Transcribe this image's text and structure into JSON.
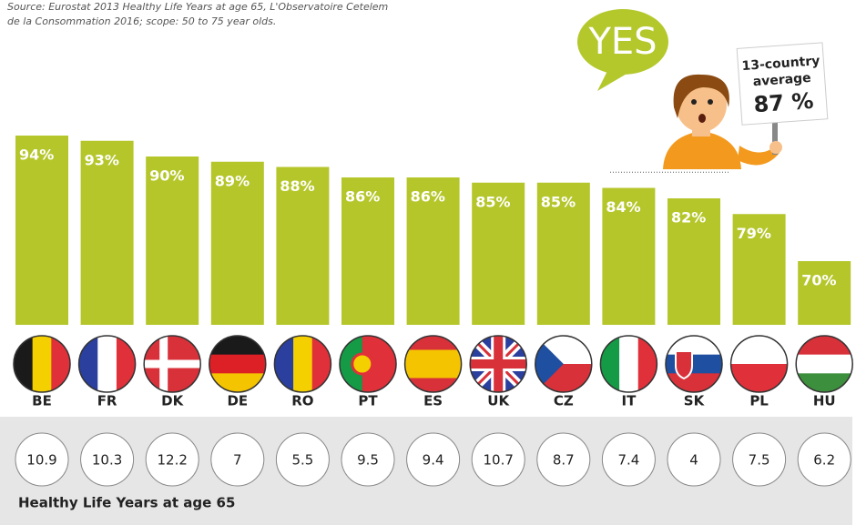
{
  "chart_data": {
    "type": "bar",
    "source": [
      "Source: Eurostat 2013 Healthy Life Years at age 65, L'Observatoire Cetelem",
      "de la Consommation 2016; scope: 50 to 75 year olds."
    ],
    "categories": [
      "BE",
      "FR",
      "DK",
      "DE",
      "RO",
      "PT",
      "ES",
      "UK",
      "CZ",
      "IT",
      "SK",
      "PL",
      "HU"
    ],
    "values": [
      94,
      93,
      90,
      89,
      88,
      86,
      86,
      85,
      85,
      84,
      82,
      79,
      70
    ],
    "value_labels": [
      "94%",
      "93%",
      "90%",
      "89%",
      "88%",
      "86%",
      "86%",
      "85%",
      "85%",
      "84%",
      "82%",
      "79%",
      "70%"
    ],
    "color": "#b5c62a",
    "answer": "YES",
    "average_caption": [
      "13-country",
      "average"
    ],
    "average": {
      "value": 87,
      "label": "87 %"
    },
    "healthy_life_years": {
      "title": "Healthy Life Years at age 65",
      "values": [
        10.9,
        10.3,
        12.2,
        7,
        5.5,
        9.5,
        9.4,
        10.7,
        8.7,
        7.4,
        4,
        7.5,
        6.2
      ]
    }
  }
}
